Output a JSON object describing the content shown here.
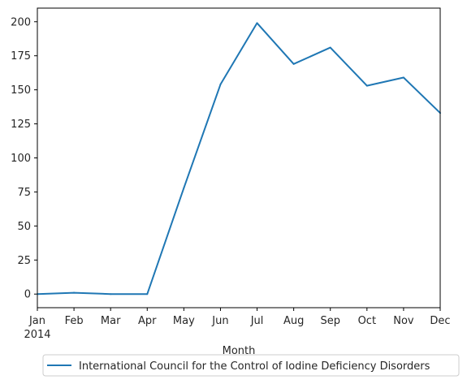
{
  "chart_data": {
    "type": "line",
    "title": "",
    "xlabel": "Month",
    "ylabel": "",
    "x": [
      "Jan",
      "Feb",
      "Mar",
      "Apr",
      "May",
      "Jun",
      "Jul",
      "Aug",
      "Sep",
      "Oct",
      "Nov",
      "Dec"
    ],
    "x_year_label": "2014",
    "ylim": [
      -10,
      210
    ],
    "yticks": [
      0,
      25,
      50,
      75,
      100,
      125,
      150,
      175,
      200
    ],
    "grid": false,
    "legend_position": "bottom-center",
    "series": [
      {
        "name": "International Council for the Control of Iodine Deficiency Disorders",
        "color": "#1f77b4",
        "values": [
          0,
          1,
          0,
          0,
          78,
          154,
          199,
          169,
          181,
          153,
          159,
          133
        ]
      }
    ]
  }
}
